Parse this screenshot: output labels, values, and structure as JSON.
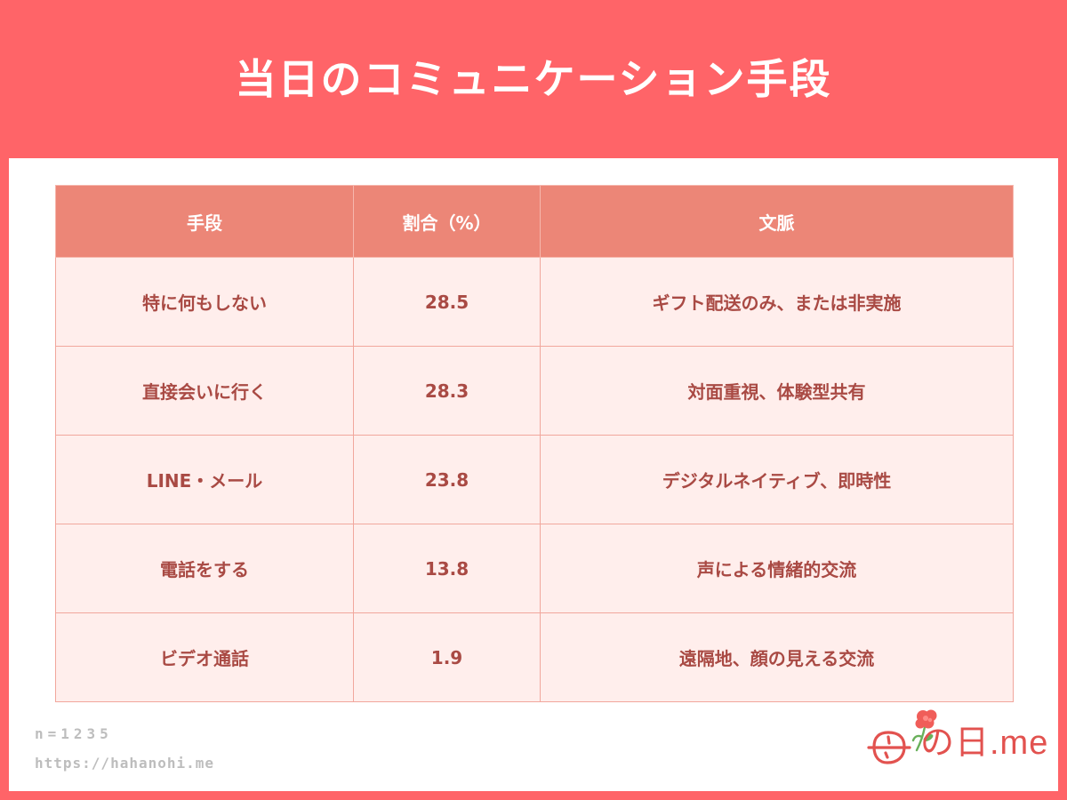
{
  "header": {
    "title": "当日のコミュニケーション手段"
  },
  "table": {
    "columns": [
      "手段",
      "割合（%）",
      "文脈"
    ],
    "rows": [
      {
        "method": "特に何もしない",
        "ratio": "28.5",
        "context": "ギフト配送のみ、または非実施"
      },
      {
        "method": "直接会いに行く",
        "ratio": "28.3",
        "context": "対面重視、体験型共有"
      },
      {
        "method": "LINE・メール",
        "ratio": "23.8",
        "context": "デジタルネイティブ、即時性"
      },
      {
        "method": "電話をする",
        "ratio": "13.8",
        "context": "声による情緒的交流"
      },
      {
        "method": "ビデオ通話",
        "ratio": "1.9",
        "context": "遠隔地、顔の見える交流"
      }
    ]
  },
  "footer": {
    "sample_size": "n=1235",
    "url": "https://hahanohi.me"
  },
  "logo": {
    "text": "の日.me"
  },
  "colors": {
    "brand": "#ff6468",
    "header_cell": "#ec8677",
    "body_cell": "#ffeeec",
    "body_text": "#a94a44"
  }
}
